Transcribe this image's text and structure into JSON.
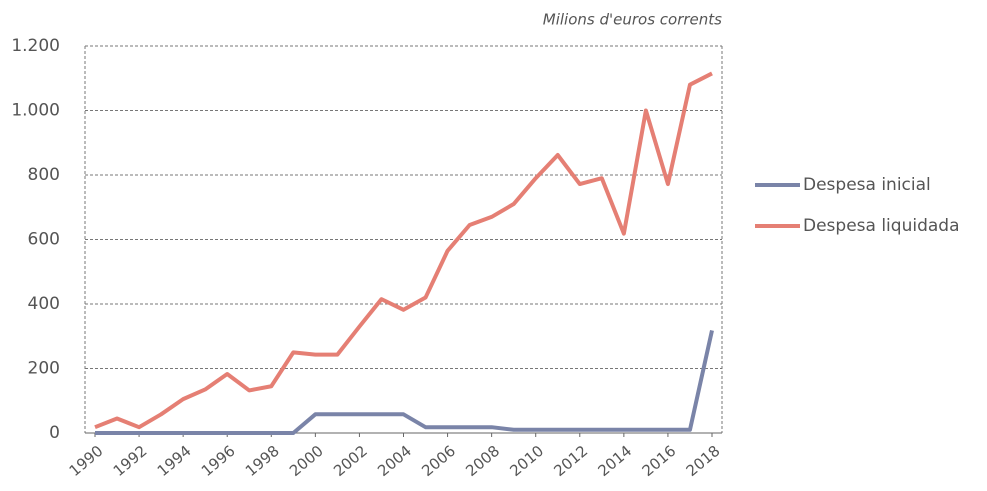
{
  "chart_data": {
    "type": "line",
    "subtitle": "Milions d'euros corrents",
    "x": [
      1990,
      1991,
      1992,
      1993,
      1994,
      1995,
      1996,
      1997,
      1998,
      1999,
      2000,
      2001,
      2002,
      2003,
      2004,
      2005,
      2006,
      2007,
      2008,
      2009,
      2010,
      2011,
      2012,
      2013,
      2014,
      2015,
      2016,
      2017,
      2018
    ],
    "xlim": [
      1990,
      2018
    ],
    "xticks": [
      1990,
      1992,
      1994,
      1996,
      1998,
      2000,
      2002,
      2004,
      2006,
      2008,
      2010,
      2012,
      2014,
      2016,
      2018
    ],
    "ylim": [
      0,
      1200
    ],
    "yticks": [
      0,
      200,
      400,
      600,
      800,
      {
        "value": 1000,
        "label": "1.000"
      },
      {
        "value": 1200,
        "label": "1.200"
      }
    ],
    "grid": true,
    "legend": "right",
    "series": [
      {
        "name": "Despesa inicial",
        "color": "#7a84a8",
        "values": [
          0,
          0,
          0,
          0,
          0,
          0,
          0,
          0,
          0,
          0,
          58,
          58,
          58,
          58,
          58,
          18,
          18,
          18,
          18,
          10,
          10,
          10,
          10,
          10,
          10,
          10,
          10,
          10,
          318
        ]
      },
      {
        "name": "Despesa liquidada",
        "color": "#e57f74",
        "values": [
          18,
          45,
          18,
          58,
          105,
          135,
          183,
          132,
          145,
          250,
          243,
          243,
          330,
          415,
          382,
          420,
          565,
          645,
          670,
          710,
          790,
          862,
          772,
          790,
          618,
          1000,
          772,
          1080,
          1115
        ]
      }
    ]
  }
}
